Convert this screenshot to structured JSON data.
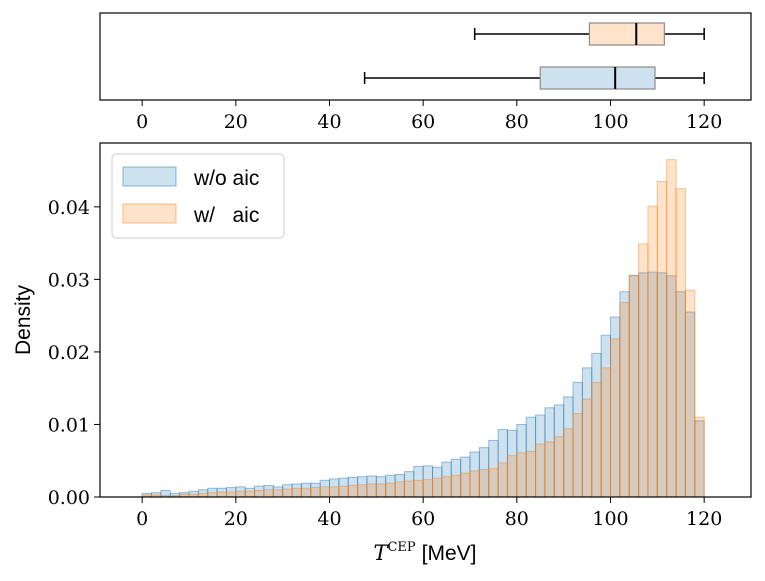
{
  "chart_data": [
    {
      "type": "box",
      "name": "top-boxplot",
      "xlim": [
        -9,
        130
      ],
      "xticks": [
        0,
        20,
        40,
        60,
        80,
        100,
        120
      ],
      "xtick_labels": [
        "0",
        "20",
        "40",
        "60",
        "80",
        "100",
        "120"
      ],
      "boxes": [
        {
          "name": "w/ aic",
          "whisker_low": 71,
          "q1": 95.5,
          "median": 105.5,
          "q3": 111.5,
          "whisker_high": 120,
          "color": "#ff7f0e"
        },
        {
          "name": "w/o aic",
          "whisker_low": 47.5,
          "q1": 85,
          "median": 101,
          "q3": 109.5,
          "whisker_high": 120,
          "color": "#1f77b4"
        }
      ]
    },
    {
      "type": "bar",
      "name": "density-histogram",
      "xlabel_math": "T",
      "xlabel_sup": "CEP",
      "xlabel_unit": "[MeV]",
      "ylabel": "Density",
      "xlim": [
        -9,
        130
      ],
      "ylim": [
        0,
        0.0488
      ],
      "xticks": [
        0,
        20,
        40,
        60,
        80,
        100,
        120
      ],
      "xtick_labels": [
        "0",
        "20",
        "40",
        "60",
        "80",
        "100",
        "120"
      ],
      "yticks": [
        0,
        0.01,
        0.02,
        0.03,
        0.04
      ],
      "ytick_labels": [
        "0.00",
        "0.01",
        "0.02",
        "0.03",
        "0.04"
      ],
      "bin_start": 0,
      "bin_width": 2,
      "legend": {
        "placement": "top-left"
      },
      "series": [
        {
          "name": "w/o aic",
          "color": "#1f77b4",
          "values": [
            0.0005,
            0.0006,
            0.0009,
            0.0005,
            0.0006,
            0.0008,
            0.001,
            0.0012,
            0.0012,
            0.0013,
            0.0014,
            0.0012,
            0.0015,
            0.0016,
            0.0014,
            0.0017,
            0.0018,
            0.0019,
            0.0019,
            0.0023,
            0.0025,
            0.0026,
            0.0027,
            0.0028,
            0.0029,
            0.0028,
            0.003,
            0.0031,
            0.0035,
            0.0042,
            0.0043,
            0.0041,
            0.0048,
            0.0052,
            0.0055,
            0.0062,
            0.0068,
            0.0078,
            0.0093,
            0.0092,
            0.01,
            0.011,
            0.0113,
            0.0123,
            0.0127,
            0.0138,
            0.0158,
            0.0178,
            0.0198,
            0.0223,
            0.0248,
            0.0283,
            0.0305,
            0.0309,
            0.031,
            0.0309,
            0.0305,
            0.0283,
            0.0255,
            0.0105
          ]
        },
        {
          "name": "w/   aic",
          "color": "#ff7f0e",
          "values": [
            0.0003,
            0.0003,
            0.0002,
            0.0002,
            0.0004,
            0.0004,
            0.0005,
            0.0006,
            0.0007,
            0.0007,
            0.0008,
            0.0008,
            0.0009,
            0.001,
            0.001,
            0.0011,
            0.0012,
            0.0012,
            0.0013,
            0.0014,
            0.0014,
            0.0015,
            0.0016,
            0.0017,
            0.0018,
            0.0018,
            0.0019,
            0.0021,
            0.0022,
            0.0023,
            0.0024,
            0.0026,
            0.0028,
            0.003,
            0.0033,
            0.0036,
            0.0038,
            0.0039,
            0.0047,
            0.0057,
            0.0061,
            0.0063,
            0.0073,
            0.0076,
            0.0083,
            0.0094,
            0.0115,
            0.0135,
            0.0158,
            0.0178,
            0.0218,
            0.0268,
            0.0306,
            0.0349,
            0.0401,
            0.0435,
            0.0465,
            0.0425,
            0.0285,
            0.011
          ]
        }
      ]
    }
  ]
}
